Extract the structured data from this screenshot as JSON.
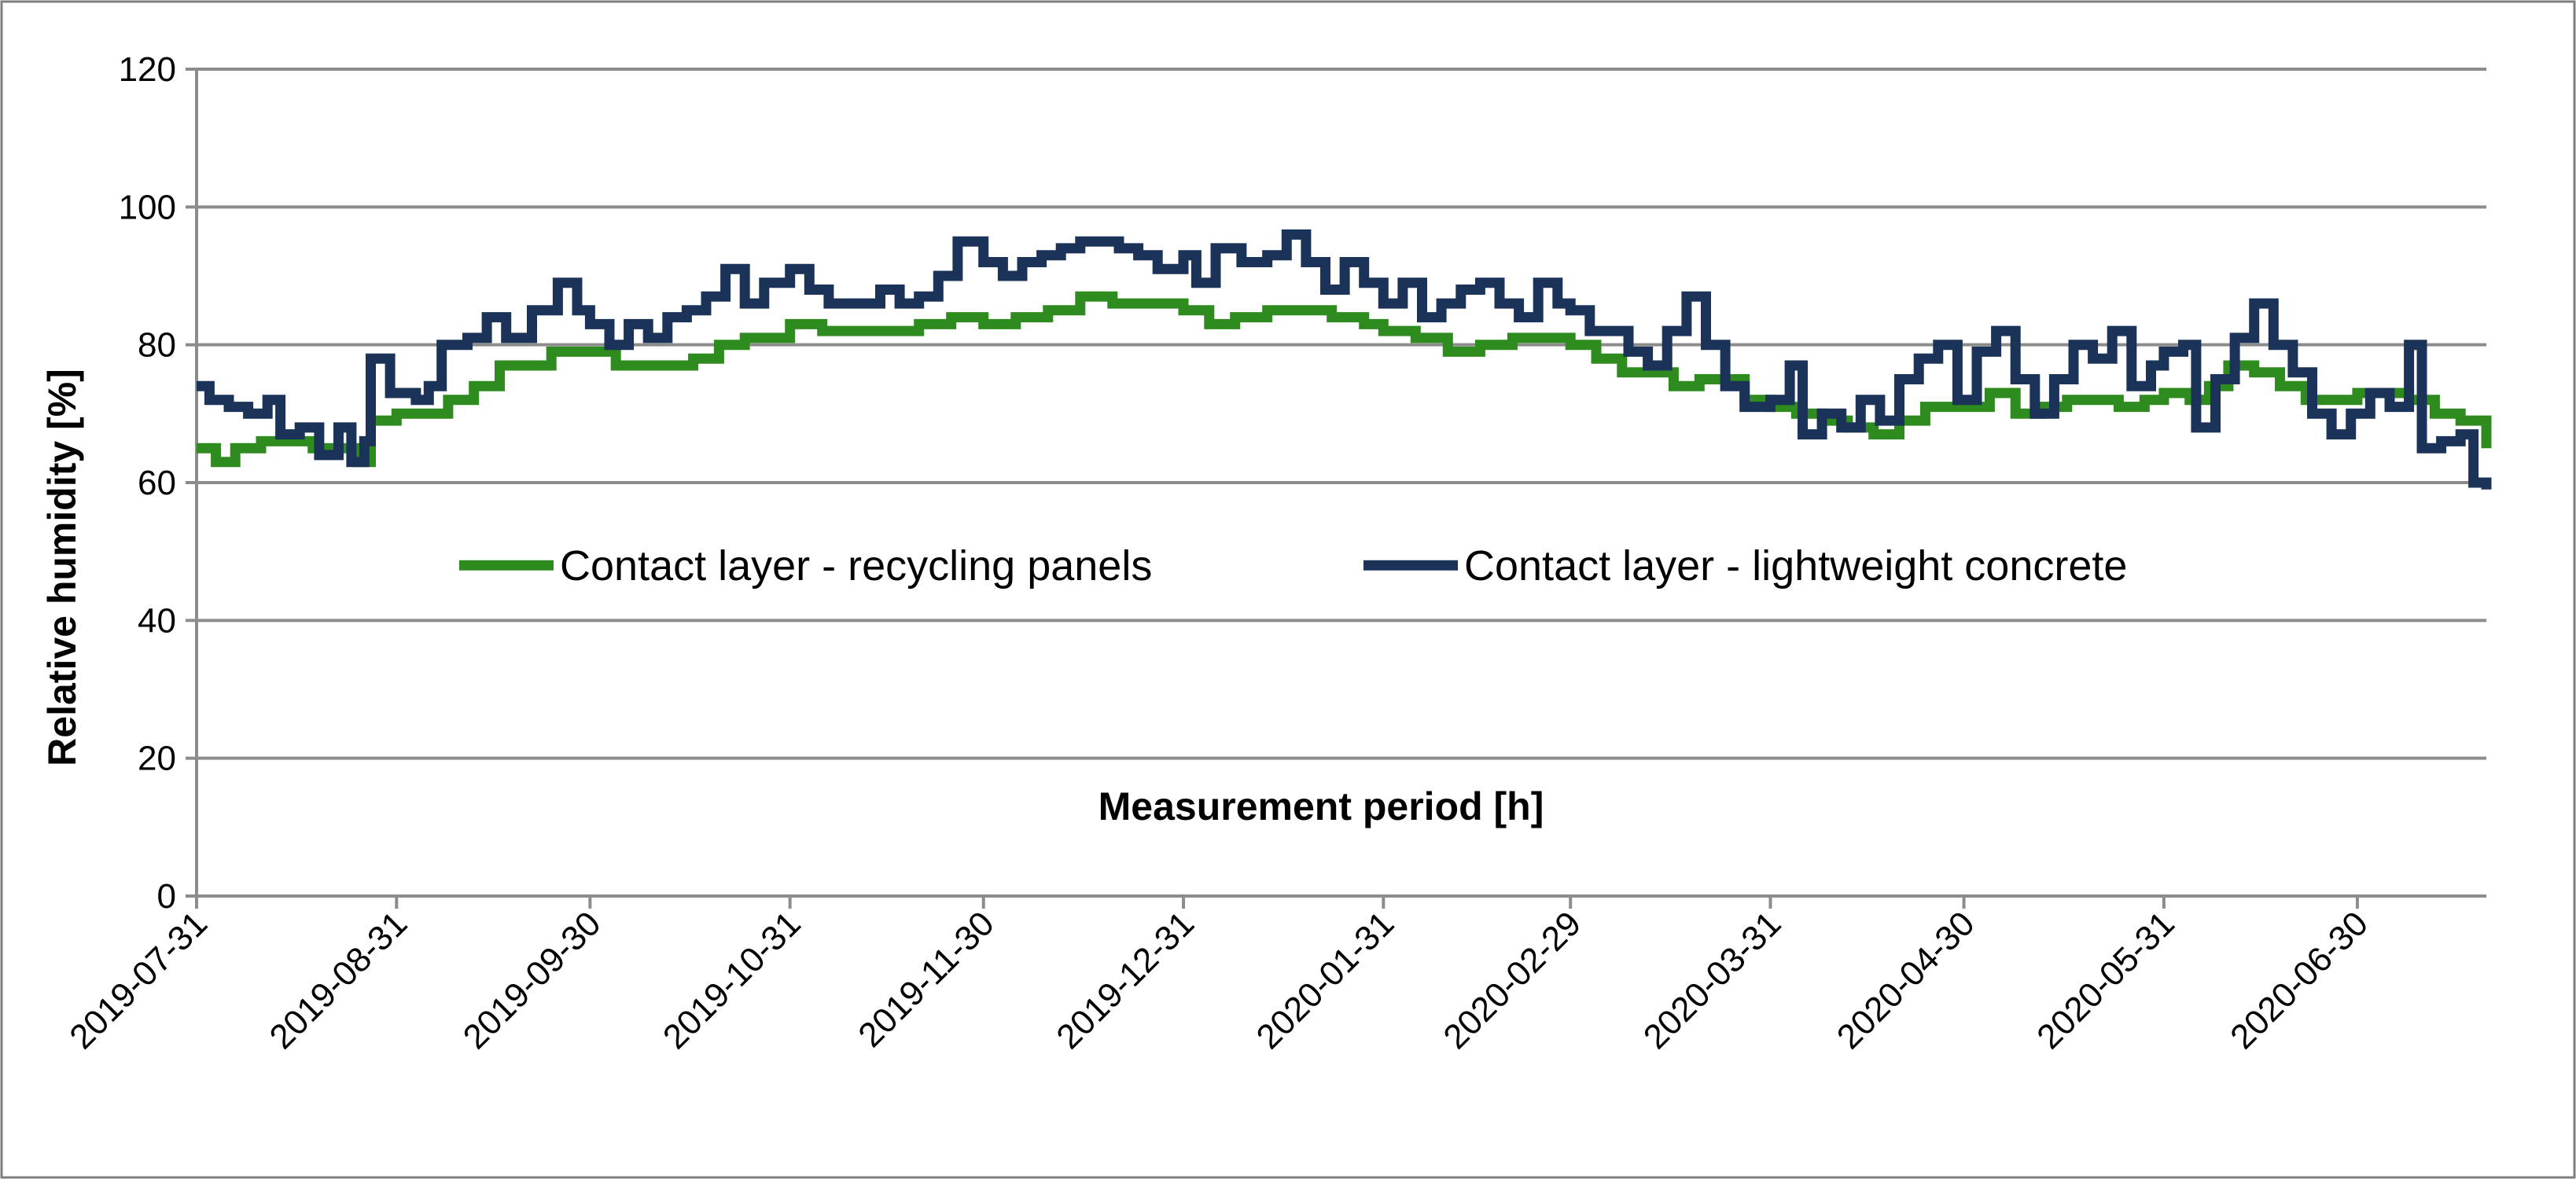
{
  "chart_data": {
    "type": "line",
    "title": "",
    "xlabel": "Measurement period [h]",
    "ylabel": "Relative humidity [%]",
    "ylim": [
      0,
      120
    ],
    "yticks": [
      0,
      20,
      40,
      60,
      80,
      100,
      120
    ],
    "x_date_range": [
      "2019-07-31",
      "2020-07-20"
    ],
    "xticks": [
      "2019-07-31",
      "2019-08-31",
      "2019-09-30",
      "2019-10-31",
      "2019-11-30",
      "2019-12-31",
      "2020-01-31",
      "2020-02-29",
      "2020-03-31",
      "2020-04-30",
      "2020-05-31",
      "2020-06-30"
    ],
    "grid": true,
    "legend_position": "center",
    "series": [
      {
        "name": "Contact layer - recycling panels",
        "color": "#2e8b1e",
        "points": [
          [
            "2019-07-31",
            65
          ],
          [
            "2019-08-03",
            63
          ],
          [
            "2019-08-06",
            65
          ],
          [
            "2019-08-10",
            66
          ],
          [
            "2019-08-14",
            66
          ],
          [
            "2019-08-18",
            65
          ],
          [
            "2019-08-22",
            65
          ],
          [
            "2019-08-25",
            63
          ],
          [
            "2019-08-27",
            69
          ],
          [
            "2019-08-31",
            70
          ],
          [
            "2019-09-04",
            70
          ],
          [
            "2019-09-08",
            72
          ],
          [
            "2019-09-12",
            74
          ],
          [
            "2019-09-16",
            77
          ],
          [
            "2019-09-20",
            77
          ],
          [
            "2019-09-24",
            79
          ],
          [
            "2019-09-28",
            79
          ],
          [
            "2019-09-30",
            79
          ],
          [
            "2019-10-04",
            77
          ],
          [
            "2019-10-08",
            77
          ],
          [
            "2019-10-12",
            77
          ],
          [
            "2019-10-16",
            78
          ],
          [
            "2019-10-20",
            80
          ],
          [
            "2019-10-24",
            81
          ],
          [
            "2019-10-31",
            83
          ],
          [
            "2019-11-05",
            82
          ],
          [
            "2019-11-10",
            82
          ],
          [
            "2019-11-15",
            82
          ],
          [
            "2019-11-20",
            83
          ],
          [
            "2019-11-25",
            84
          ],
          [
            "2019-11-30",
            83
          ],
          [
            "2019-12-05",
            84
          ],
          [
            "2019-12-10",
            85
          ],
          [
            "2019-12-15",
            87
          ],
          [
            "2019-12-20",
            86
          ],
          [
            "2019-12-25",
            86
          ],
          [
            "2019-12-31",
            85
          ],
          [
            "2020-01-04",
            83
          ],
          [
            "2020-01-08",
            84
          ],
          [
            "2020-01-13",
            85
          ],
          [
            "2020-01-18",
            85
          ],
          [
            "2020-01-23",
            84
          ],
          [
            "2020-01-28",
            83
          ],
          [
            "2020-01-31",
            82
          ],
          [
            "2020-02-05",
            81
          ],
          [
            "2020-02-10",
            79
          ],
          [
            "2020-02-15",
            80
          ],
          [
            "2020-02-20",
            81
          ],
          [
            "2020-02-25",
            81
          ],
          [
            "2020-02-29",
            80
          ],
          [
            "2020-03-04",
            78
          ],
          [
            "2020-03-08",
            76
          ],
          [
            "2020-03-12",
            76
          ],
          [
            "2020-03-16",
            74
          ],
          [
            "2020-03-20",
            75
          ],
          [
            "2020-03-24",
            75
          ],
          [
            "2020-03-27",
            72
          ],
          [
            "2020-03-31",
            71
          ],
          [
            "2020-04-04",
            70
          ],
          [
            "2020-04-08",
            69
          ],
          [
            "2020-04-12",
            68
          ],
          [
            "2020-04-16",
            67
          ],
          [
            "2020-04-20",
            69
          ],
          [
            "2020-04-24",
            71
          ],
          [
            "2020-04-30",
            71
          ],
          [
            "2020-05-04",
            73
          ],
          [
            "2020-05-08",
            70
          ],
          [
            "2020-05-12",
            71
          ],
          [
            "2020-05-16",
            72
          ],
          [
            "2020-05-20",
            72
          ],
          [
            "2020-05-24",
            71
          ],
          [
            "2020-05-28",
            72
          ],
          [
            "2020-05-31",
            73
          ],
          [
            "2020-06-04",
            72
          ],
          [
            "2020-06-07",
            74
          ],
          [
            "2020-06-10",
            77
          ],
          [
            "2020-06-14",
            76
          ],
          [
            "2020-06-18",
            74
          ],
          [
            "2020-06-22",
            72
          ],
          [
            "2020-06-26",
            72
          ],
          [
            "2020-06-30",
            73
          ],
          [
            "2020-07-04",
            73
          ],
          [
            "2020-07-08",
            72
          ],
          [
            "2020-07-12",
            70
          ],
          [
            "2020-07-16",
            69
          ],
          [
            "2020-07-20",
            65
          ]
        ]
      },
      {
        "name": "Contact layer - lightweight concrete",
        "color": "#1b3358",
        "points": [
          [
            "2019-07-31",
            74
          ],
          [
            "2019-08-02",
            72
          ],
          [
            "2019-08-05",
            71
          ],
          [
            "2019-08-08",
            70
          ],
          [
            "2019-08-11",
            72
          ],
          [
            "2019-08-13",
            67
          ],
          [
            "2019-08-16",
            68
          ],
          [
            "2019-08-19",
            64
          ],
          [
            "2019-08-22",
            68
          ],
          [
            "2019-08-24",
            63
          ],
          [
            "2019-08-26",
            66
          ],
          [
            "2019-08-27",
            78
          ],
          [
            "2019-08-30",
            73
          ],
          [
            "2019-09-03",
            72
          ],
          [
            "2019-09-05",
            74
          ],
          [
            "2019-09-07",
            80
          ],
          [
            "2019-09-11",
            81
          ],
          [
            "2019-09-14",
            84
          ],
          [
            "2019-09-17",
            81
          ],
          [
            "2019-09-21",
            85
          ],
          [
            "2019-09-25",
            89
          ],
          [
            "2019-09-28",
            85
          ],
          [
            "2019-09-30",
            83
          ],
          [
            "2019-10-03",
            80
          ],
          [
            "2019-10-06",
            83
          ],
          [
            "2019-10-09",
            81
          ],
          [
            "2019-10-12",
            84
          ],
          [
            "2019-10-15",
            85
          ],
          [
            "2019-10-18",
            87
          ],
          [
            "2019-10-21",
            91
          ],
          [
            "2019-10-24",
            86
          ],
          [
            "2019-10-27",
            89
          ],
          [
            "2019-10-31",
            91
          ],
          [
            "2019-11-03",
            88
          ],
          [
            "2019-11-06",
            86
          ],
          [
            "2019-11-10",
            86
          ],
          [
            "2019-11-14",
            88
          ],
          [
            "2019-11-17",
            86
          ],
          [
            "2019-11-20",
            87
          ],
          [
            "2019-11-23",
            90
          ],
          [
            "2019-11-26",
            95
          ],
          [
            "2019-11-30",
            92
          ],
          [
            "2019-12-03",
            90
          ],
          [
            "2019-12-06",
            92
          ],
          [
            "2019-12-09",
            93
          ],
          [
            "2019-12-12",
            94
          ],
          [
            "2019-12-15",
            95
          ],
          [
            "2019-12-18",
            95
          ],
          [
            "2019-12-21",
            94
          ],
          [
            "2019-12-24",
            93
          ],
          [
            "2019-12-27",
            91
          ],
          [
            "2019-12-31",
            93
          ],
          [
            "2020-01-02",
            89
          ],
          [
            "2020-01-05",
            94
          ],
          [
            "2020-01-09",
            92
          ],
          [
            "2020-01-13",
            93
          ],
          [
            "2020-01-16",
            96
          ],
          [
            "2020-01-19",
            92
          ],
          [
            "2020-01-22",
            88
          ],
          [
            "2020-01-25",
            92
          ],
          [
            "2020-01-28",
            89
          ],
          [
            "2020-01-31",
            86
          ],
          [
            "2020-02-03",
            89
          ],
          [
            "2020-02-06",
            84
          ],
          [
            "2020-02-09",
            86
          ],
          [
            "2020-02-12",
            88
          ],
          [
            "2020-02-15",
            89
          ],
          [
            "2020-02-18",
            86
          ],
          [
            "2020-02-21",
            84
          ],
          [
            "2020-02-24",
            89
          ],
          [
            "2020-02-27",
            86
          ],
          [
            "2020-02-29",
            85
          ],
          [
            "2020-03-03",
            82
          ],
          [
            "2020-03-06",
            82
          ],
          [
            "2020-03-09",
            79
          ],
          [
            "2020-03-12",
            77
          ],
          [
            "2020-03-15",
            82
          ],
          [
            "2020-03-18",
            87
          ],
          [
            "2020-03-21",
            80
          ],
          [
            "2020-03-24",
            74
          ],
          [
            "2020-03-27",
            71
          ],
          [
            "2020-03-31",
            72
          ],
          [
            "2020-04-03",
            77
          ],
          [
            "2020-04-05",
            67
          ],
          [
            "2020-04-08",
            70
          ],
          [
            "2020-04-11",
            68
          ],
          [
            "2020-04-14",
            72
          ],
          [
            "2020-04-17",
            69
          ],
          [
            "2020-04-20",
            75
          ],
          [
            "2020-04-23",
            78
          ],
          [
            "2020-04-26",
            80
          ],
          [
            "2020-04-29",
            72
          ],
          [
            "2020-05-02",
            79
          ],
          [
            "2020-05-05",
            82
          ],
          [
            "2020-05-08",
            75
          ],
          [
            "2020-05-11",
            70
          ],
          [
            "2020-05-14",
            75
          ],
          [
            "2020-05-17",
            80
          ],
          [
            "2020-05-20",
            78
          ],
          [
            "2020-05-23",
            82
          ],
          [
            "2020-05-26",
            74
          ],
          [
            "2020-05-29",
            77
          ],
          [
            "2020-05-31",
            79
          ],
          [
            "2020-06-03",
            80
          ],
          [
            "2020-06-05",
            68
          ],
          [
            "2020-06-08",
            75
          ],
          [
            "2020-06-11",
            81
          ],
          [
            "2020-06-14",
            86
          ],
          [
            "2020-06-17",
            80
          ],
          [
            "2020-06-20",
            76
          ],
          [
            "2020-06-23",
            70
          ],
          [
            "2020-06-26",
            67
          ],
          [
            "2020-06-29",
            70
          ],
          [
            "2020-07-02",
            73
          ],
          [
            "2020-07-05",
            71
          ],
          [
            "2020-07-08",
            80
          ],
          [
            "2020-07-10",
            65
          ],
          [
            "2020-07-13",
            66
          ],
          [
            "2020-07-16",
            67
          ],
          [
            "2020-07-18",
            60
          ],
          [
            "2020-07-20",
            59
          ]
        ]
      }
    ]
  }
}
